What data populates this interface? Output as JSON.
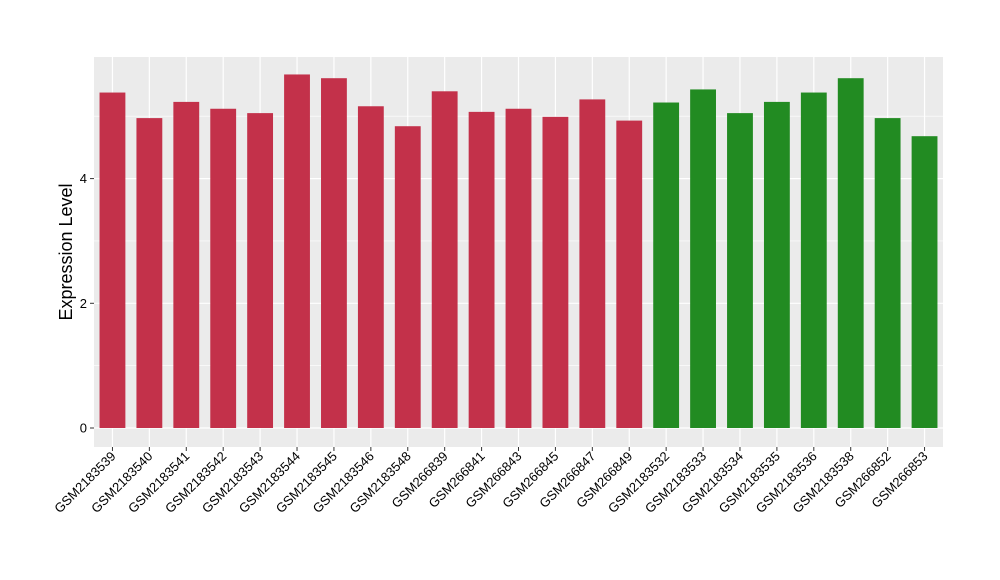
{
  "chart_data": {
    "type": "bar",
    "title": "",
    "xlabel": "",
    "ylabel": "Expression Level",
    "ylim": [
      0,
      5.95
    ],
    "yticks": [
      0,
      2,
      4
    ],
    "grid": true,
    "legend": "none",
    "categories": [
      "GSM2183539",
      "GSM2183540",
      "GSM2183541",
      "GSM2183542",
      "GSM2183543",
      "GSM2183544",
      "GSM2183545",
      "GSM2183546",
      "GSM2183548",
      "GSM266839",
      "GSM266841",
      "GSM266843",
      "GSM266845",
      "GSM266847",
      "GSM266849",
      "GSM2183532",
      "GSM2183533",
      "GSM2183534",
      "GSM2183535",
      "GSM2183536",
      "GSM2183538",
      "GSM266852",
      "GSM266853"
    ],
    "values": [
      5.38,
      4.97,
      5.23,
      5.12,
      5.05,
      5.67,
      5.61,
      5.16,
      4.84,
      5.4,
      5.07,
      5.12,
      4.99,
      5.27,
      4.93,
      5.22,
      5.43,
      5.05,
      5.23,
      5.38,
      5.61,
      4.97,
      4.68
    ],
    "groups": [
      0,
      0,
      0,
      0,
      0,
      0,
      0,
      0,
      0,
      0,
      0,
      0,
      0,
      0,
      0,
      1,
      1,
      1,
      1,
      1,
      1,
      1,
      1
    ],
    "group_colors": [
      "#c3314a",
      "#228b22"
    ],
    "panel_color": "#ebebeb",
    "grid_color": "#ffffff"
  }
}
